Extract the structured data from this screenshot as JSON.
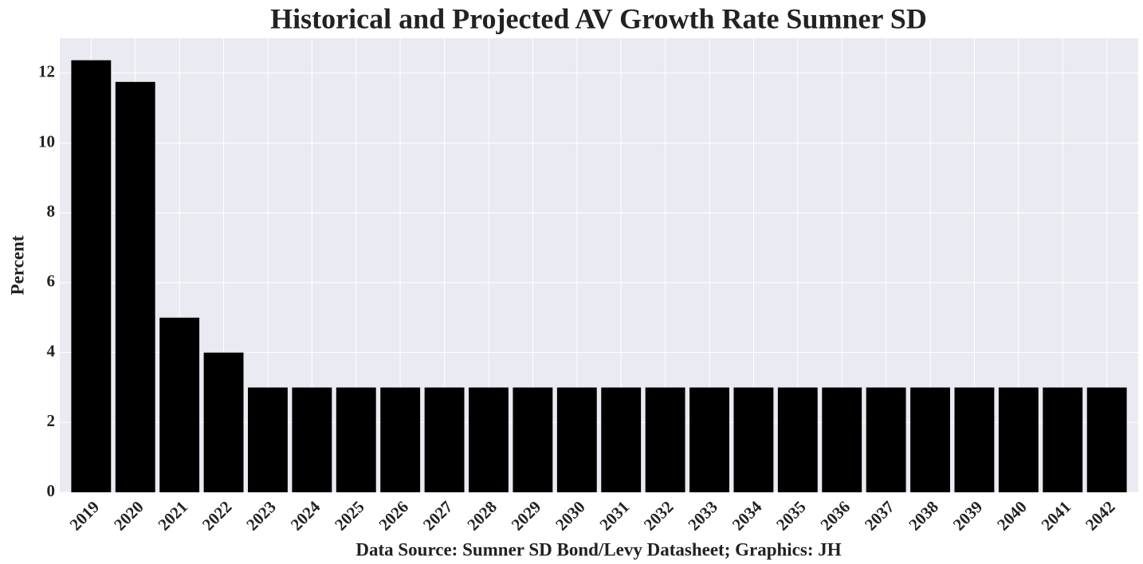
{
  "chart_data": {
    "type": "bar",
    "title": "Historical and Projected AV Growth Rate Sumner SD",
    "xlabel": "Data Source: Sumner SD Bond/Levy Datasheet; Graphics: JH",
    "ylabel": "Percent",
    "categories": [
      "2019",
      "2020",
      "2021",
      "2022",
      "2023",
      "2024",
      "2025",
      "2026",
      "2027",
      "2028",
      "2029",
      "2030",
      "2031",
      "2032",
      "2033",
      "2034",
      "2035",
      "2036",
      "2037",
      "2038",
      "2039",
      "2040",
      "2041",
      "2042"
    ],
    "values": [
      12.37,
      11.75,
      5.0,
      4.0,
      3,
      3,
      3,
      3,
      3,
      3,
      3,
      3,
      3,
      3,
      3,
      3,
      3,
      3,
      3,
      3,
      3,
      3,
      3,
      3
    ],
    "color": "#000000",
    "ylim": [
      0,
      13
    ],
    "yticks": [
      0,
      2,
      4,
      6,
      8,
      10,
      12
    ],
    "grid": true
  }
}
